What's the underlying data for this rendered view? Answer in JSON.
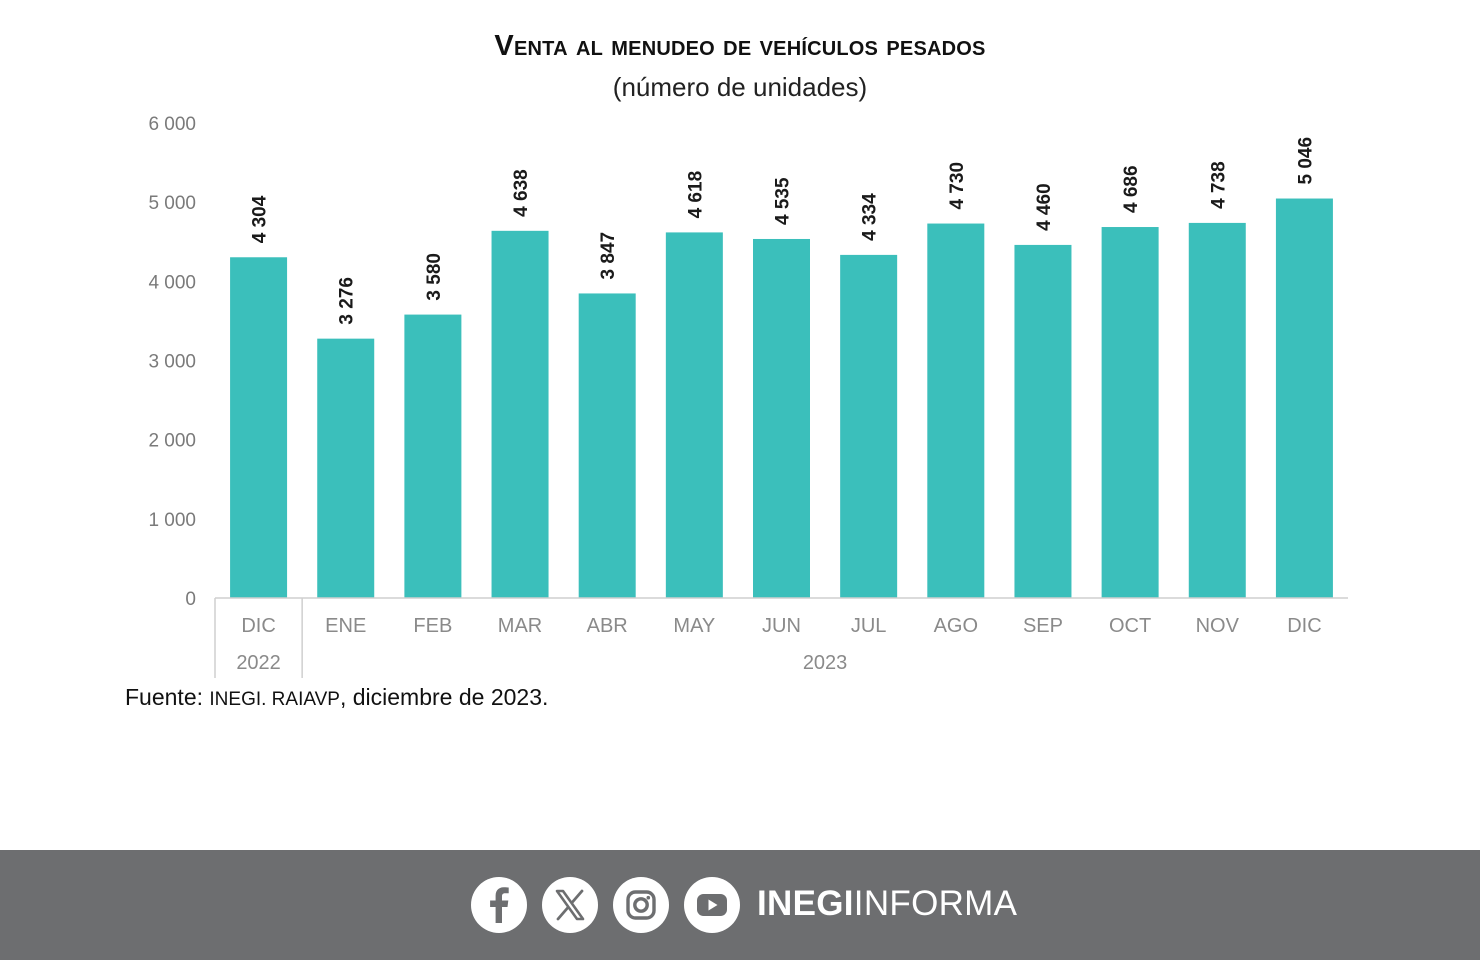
{
  "chart_data": {
    "type": "bar",
    "title": "Venta al menudeo de vehículos pesados",
    "subtitle": "(número de unidades)",
    "categories": [
      "DIC",
      "ENE",
      "FEB",
      "MAR",
      "ABR",
      "MAY",
      "JUN",
      "JUL",
      "AGO",
      "SEP",
      "OCT",
      "NOV",
      "DIC"
    ],
    "values": [
      4304,
      3276,
      3580,
      4638,
      3847,
      4618,
      4535,
      4334,
      4730,
      4460,
      4686,
      4738,
      5046
    ],
    "value_labels": [
      "4 304",
      "3 276",
      "3 580",
      "4 638",
      "3 847",
      "4 618",
      "4 535",
      "4 334",
      "4 730",
      "4 460",
      "4 686",
      "4 738",
      "5 046"
    ],
    "year_groups": [
      {
        "label": "2022",
        "start": 0,
        "end": 0
      },
      {
        "label": "2023",
        "start": 1,
        "end": 12
      }
    ],
    "ylim": [
      0,
      6000
    ],
    "yticks": [
      0,
      1000,
      2000,
      3000,
      4000,
      5000,
      6000
    ],
    "ytick_labels": [
      "0",
      "1 000",
      "2 000",
      "3 000",
      "4 000",
      "5 000",
      "6 000"
    ],
    "grid": false,
    "bar_color": "#3bbfbb"
  },
  "source": {
    "prefix": "Fuente: ",
    "org": "INEGI. RAIAVP",
    "suffix": ", diciembre de 2023."
  },
  "footer": {
    "icons": [
      "facebook-icon",
      "x-icon",
      "instagram-icon",
      "youtube-icon"
    ],
    "brand_bold": "INEGI",
    "brand_light": "INFORMA",
    "background": "#6d6e70"
  }
}
